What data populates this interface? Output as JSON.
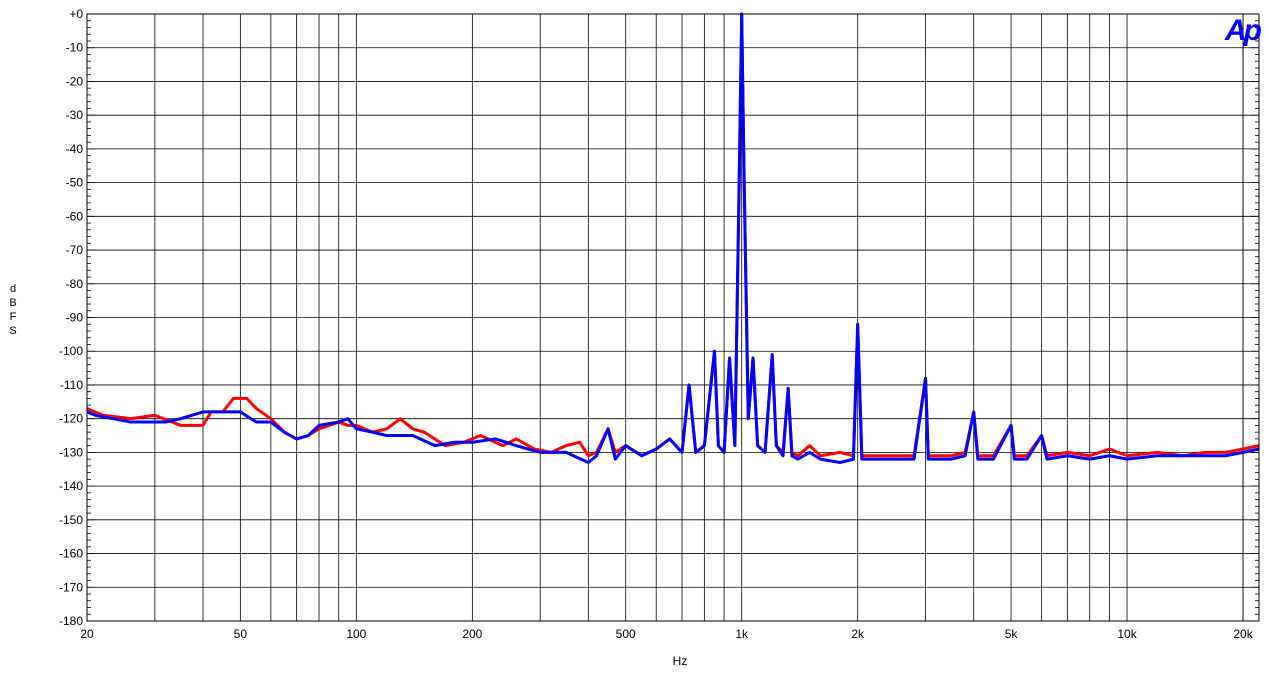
{
  "chart_data": {
    "type": "line",
    "title": "",
    "xlabel": "Hz",
    "ylabel": "dBFS",
    "xscale": "log",
    "xlim": [
      20,
      22000
    ],
    "ylim": [
      -180,
      0
    ],
    "grid": true,
    "x_ticks": [
      {
        "value": 20,
        "label": "20"
      },
      {
        "value": 50,
        "label": "50"
      },
      {
        "value": 100,
        "label": "100"
      },
      {
        "value": 200,
        "label": "200"
      },
      {
        "value": 500,
        "label": "500"
      },
      {
        "value": 1000,
        "label": "1k"
      },
      {
        "value": 2000,
        "label": "2k"
      },
      {
        "value": 5000,
        "label": "5k"
      },
      {
        "value": 10000,
        "label": "10k"
      },
      {
        "value": 20000,
        "label": "20k"
      }
    ],
    "y_ticks": [
      {
        "value": 0,
        "label": "+0"
      },
      {
        "value": -10,
        "label": "-10"
      },
      {
        "value": -20,
        "label": "-20"
      },
      {
        "value": -30,
        "label": "-30"
      },
      {
        "value": -40,
        "label": "-40"
      },
      {
        "value": -50,
        "label": "-50"
      },
      {
        "value": -60,
        "label": "-60"
      },
      {
        "value": -70,
        "label": "-70"
      },
      {
        "value": -80,
        "label": "-80"
      },
      {
        "value": -90,
        "label": "-90"
      },
      {
        "value": -100,
        "label": "-100"
      },
      {
        "value": -110,
        "label": "-110"
      },
      {
        "value": -120,
        "label": "-120"
      },
      {
        "value": -130,
        "label": "-130"
      },
      {
        "value": -140,
        "label": "-140"
      },
      {
        "value": -150,
        "label": "-150"
      },
      {
        "value": -160,
        "label": "-160"
      },
      {
        "value": -170,
        "label": "-170"
      },
      {
        "value": -180,
        "label": "-180"
      }
    ],
    "series": [
      {
        "color": "#ff0000",
        "points": [
          [
            20,
            -117
          ],
          [
            22,
            -119
          ],
          [
            26,
            -120
          ],
          [
            30,
            -119
          ],
          [
            35,
            -122
          ],
          [
            40,
            -122
          ],
          [
            42,
            -118
          ],
          [
            45,
            -118
          ],
          [
            48,
            -114
          ],
          [
            52,
            -114
          ],
          [
            55,
            -117
          ],
          [
            60,
            -120
          ],
          [
            65,
            -124
          ],
          [
            70,
            -126
          ],
          [
            75,
            -125
          ],
          [
            80,
            -123
          ],
          [
            85,
            -122
          ],
          [
            90,
            -121
          ],
          [
            95,
            -122
          ],
          [
            100,
            -122
          ],
          [
            110,
            -124
          ],
          [
            120,
            -123
          ],
          [
            130,
            -120
          ],
          [
            140,
            -123
          ],
          [
            150,
            -124
          ],
          [
            170,
            -128
          ],
          [
            190,
            -127
          ],
          [
            210,
            -125
          ],
          [
            240,
            -128
          ],
          [
            260,
            -126
          ],
          [
            290,
            -129
          ],
          [
            320,
            -130
          ],
          [
            350,
            -128
          ],
          [
            380,
            -127
          ],
          [
            400,
            -131
          ],
          [
            420,
            -130
          ],
          [
            450,
            -123
          ],
          [
            470,
            -130
          ],
          [
            500,
            -128
          ],
          [
            550,
            -131
          ],
          [
            600,
            -129
          ],
          [
            650,
            -126
          ],
          [
            700,
            -130
          ],
          [
            730,
            -110
          ],
          [
            760,
            -130
          ],
          [
            800,
            -128
          ],
          [
            850,
            -100
          ],
          [
            870,
            -128
          ],
          [
            900,
            -130
          ],
          [
            930,
            -102
          ],
          [
            960,
            -128
          ],
          [
            985,
            -50
          ],
          [
            1000,
            0
          ],
          [
            1015,
            -50
          ],
          [
            1040,
            -120
          ],
          [
            1070,
            -102
          ],
          [
            1100,
            -128
          ],
          [
            1150,
            -130
          ],
          [
            1200,
            -101
          ],
          [
            1230,
            -128
          ],
          [
            1280,
            -130
          ],
          [
            1320,
            -111
          ],
          [
            1350,
            -130
          ],
          [
            1400,
            -131
          ],
          [
            1500,
            -128
          ],
          [
            1600,
            -131
          ],
          [
            1800,
            -130
          ],
          [
            1950,
            -131
          ],
          [
            2000,
            -92
          ],
          [
            2050,
            -131
          ],
          [
            2200,
            -131
          ],
          [
            2500,
            -131
          ],
          [
            2800,
            -131
          ],
          [
            3000,
            -108
          ],
          [
            3050,
            -131
          ],
          [
            3500,
            -131
          ],
          [
            3800,
            -130
          ],
          [
            4000,
            -118
          ],
          [
            4100,
            -131
          ],
          [
            4500,
            -131
          ],
          [
            5000,
            -122
          ],
          [
            5100,
            -131
          ],
          [
            5500,
            -131
          ],
          [
            6000,
            -125
          ],
          [
            6200,
            -131
          ],
          [
            7000,
            -130
          ],
          [
            8000,
            -131
          ],
          [
            9000,
            -129
          ],
          [
            10000,
            -131
          ],
          [
            12000,
            -130
          ],
          [
            14000,
            -131
          ],
          [
            16000,
            -130
          ],
          [
            18000,
            -130
          ],
          [
            20000,
            -129
          ],
          [
            22000,
            -128
          ]
        ]
      },
      {
        "color": "#0000ff",
        "points": [
          [
            20,
            -118
          ],
          [
            21,
            -119
          ],
          [
            26,
            -121
          ],
          [
            30,
            -121
          ],
          [
            32,
            -121
          ],
          [
            35,
            -120
          ],
          [
            40,
            -118
          ],
          [
            45,
            -118
          ],
          [
            50,
            -118
          ],
          [
            55,
            -121
          ],
          [
            60,
            -121
          ],
          [
            65,
            -124
          ],
          [
            70,
            -126
          ],
          [
            75,
            -125
          ],
          [
            80,
            -122
          ],
          [
            90,
            -121
          ],
          [
            95,
            -120
          ],
          [
            100,
            -123
          ],
          [
            110,
            -124
          ],
          [
            120,
            -125
          ],
          [
            140,
            -125
          ],
          [
            160,
            -128
          ],
          [
            180,
            -127
          ],
          [
            200,
            -127
          ],
          [
            230,
            -126
          ],
          [
            260,
            -128
          ],
          [
            300,
            -130
          ],
          [
            350,
            -130
          ],
          [
            400,
            -133
          ],
          [
            420,
            -131
          ],
          [
            450,
            -123
          ],
          [
            470,
            -132
          ],
          [
            500,
            -128
          ],
          [
            550,
            -131
          ],
          [
            600,
            -129
          ],
          [
            650,
            -126
          ],
          [
            700,
            -130
          ],
          [
            730,
            -110
          ],
          [
            760,
            -130
          ],
          [
            800,
            -128
          ],
          [
            850,
            -100
          ],
          [
            870,
            -128
          ],
          [
            900,
            -130
          ],
          [
            930,
            -102
          ],
          [
            960,
            -128
          ],
          [
            985,
            -50
          ],
          [
            1000,
            0
          ],
          [
            1015,
            -50
          ],
          [
            1040,
            -120
          ],
          [
            1070,
            -102
          ],
          [
            1100,
            -128
          ],
          [
            1150,
            -130
          ],
          [
            1200,
            -101
          ],
          [
            1230,
            -128
          ],
          [
            1280,
            -131
          ],
          [
            1320,
            -111
          ],
          [
            1350,
            -131
          ],
          [
            1400,
            -132
          ],
          [
            1500,
            -130
          ],
          [
            1600,
            -132
          ],
          [
            1800,
            -133
          ],
          [
            1950,
            -132
          ],
          [
            2000,
            -92
          ],
          [
            2050,
            -132
          ],
          [
            2200,
            -132
          ],
          [
            2500,
            -132
          ],
          [
            2800,
            -132
          ],
          [
            3000,
            -108
          ],
          [
            3050,
            -132
          ],
          [
            3500,
            -132
          ],
          [
            3800,
            -131
          ],
          [
            4000,
            -118
          ],
          [
            4100,
            -132
          ],
          [
            4500,
            -132
          ],
          [
            5000,
            -122
          ],
          [
            5100,
            -132
          ],
          [
            5500,
            -132
          ],
          [
            6000,
            -125
          ],
          [
            6200,
            -132
          ],
          [
            7000,
            -131
          ],
          [
            8000,
            -132
          ],
          [
            9000,
            -131
          ],
          [
            10000,
            -132
          ],
          [
            12000,
            -131
          ],
          [
            14000,
            -131
          ],
          [
            16000,
            -131
          ],
          [
            18000,
            -131
          ],
          [
            20000,
            -130
          ],
          [
            22000,
            -129
          ]
        ]
      }
    ]
  },
  "logo": {
    "text": "Ap",
    "color": "#0000ff"
  }
}
